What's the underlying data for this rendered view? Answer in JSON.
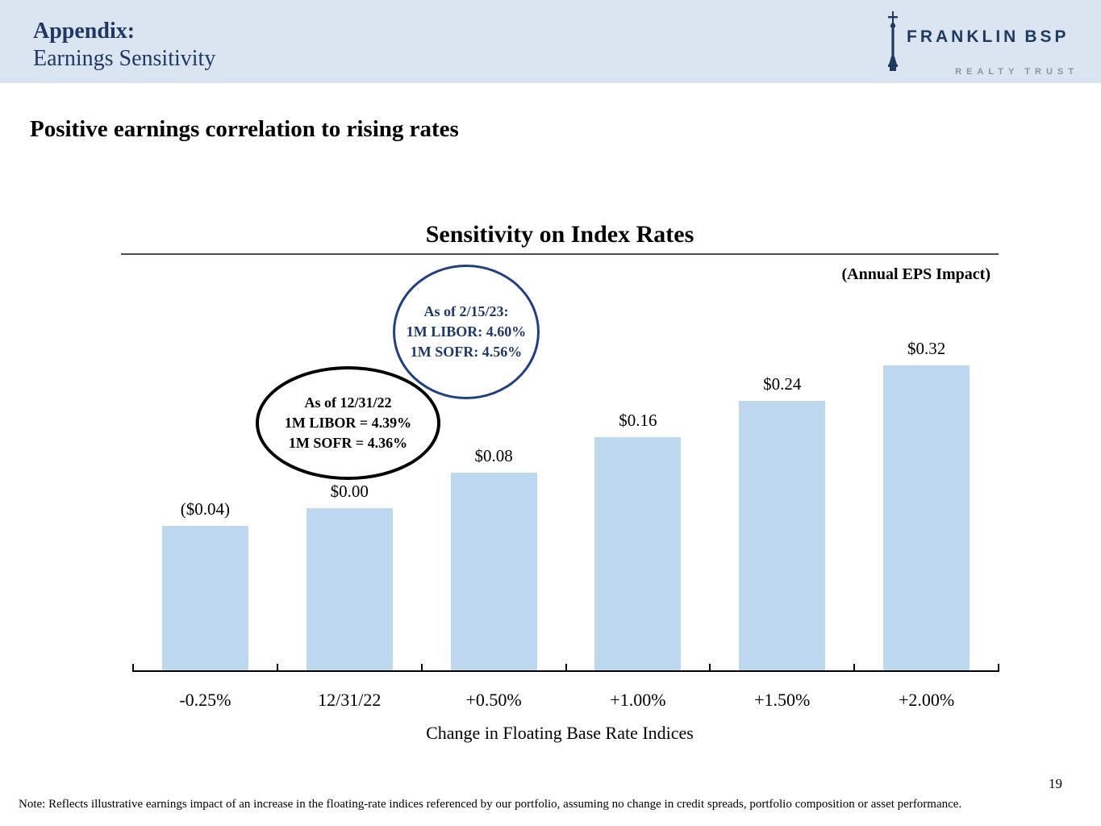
{
  "slide": {
    "header": {
      "title_line1": "Appendix:",
      "title_line2": "Earnings Sensitivity"
    },
    "logo": {
      "brand_left": "FRANKLIN",
      "brand_right": "BSP",
      "subtitle_left": "REALTY",
      "subtitle_right": "TRUST",
      "brand_color": "#1e3a5f",
      "subtitle_color": "#8b949c"
    },
    "headline": "Positive earnings correlation to rising rates",
    "page_number": "19",
    "footnote": "Note: Reflects illustrative earnings impact of an increase in the floating-rate indices referenced by our portfolio, assuming no change in credit spreads, portfolio composition or asset performance.",
    "header_band_color": "#dbe5f1",
    "accent_navy": "#1f3864"
  },
  "annotations": {
    "circle": {
      "lines": [
        "As of 2/15/23:",
        "1M LIBOR: 4.60%",
        "1M SOFR: 4.56%"
      ],
      "stroke_color": "#24407a",
      "text_color": "#1f3864"
    },
    "ellipse": {
      "lines": [
        "As of 12/31/22",
        "1M LIBOR = 4.39%",
        "1M SOFR = 4.36%"
      ],
      "stroke_color": "#000000",
      "text_color": "#000000"
    }
  },
  "chart_data": {
    "type": "bar",
    "title": "Sensitivity on Index Rates",
    "units_label": "(Annual EPS Impact)",
    "categories": [
      "-0.25%",
      "12/31/22",
      "+0.50%",
      "+1.00%",
      "+1.50%",
      "+2.00%"
    ],
    "values": [
      -0.04,
      0.0,
      0.08,
      0.16,
      0.24,
      0.32
    ],
    "value_labels": [
      "($0.04)",
      "$0.00",
      "$0.08",
      "$0.16",
      "$0.24",
      "$0.32"
    ],
    "xlabel": "Change in Floating Base Rate Indices",
    "ylabel": "",
    "bar_color": "#bdd7ee",
    "grid": false,
    "legend": "none",
    "baseline_note": "bars drawn from a suppressed minimum below -$0.04; single series"
  }
}
